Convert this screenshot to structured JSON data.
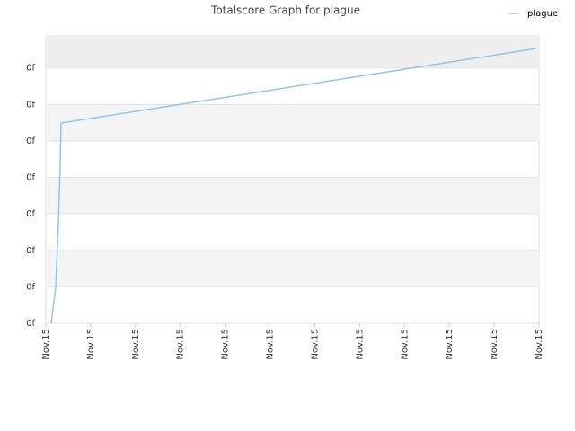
{
  "chart_data": {
    "type": "line",
    "title": "Totalscore Graph for plague",
    "x": [
      0.12,
      0.22,
      0.28,
      0.32,
      0.34,
      10.92
    ],
    "series": [
      {
        "name": "plague",
        "color": "#90c5ee",
        "values": [
          0,
          0.98,
          2.7,
          4.3,
          5.49,
          7.53
        ]
      }
    ],
    "xlim": [
      0,
      11
    ],
    "xticks": [
      {
        "value": 0,
        "label": "Nov.15"
      },
      {
        "value": 1,
        "label": "Nov.15"
      },
      {
        "value": 2,
        "label": "Nov.15"
      },
      {
        "value": 3,
        "label": "Nov.15"
      },
      {
        "value": 4,
        "label": "Nov.15"
      },
      {
        "value": 5,
        "label": "Nov.15"
      },
      {
        "value": 6,
        "label": "Nov.15"
      },
      {
        "value": 7,
        "label": "Nov.15"
      },
      {
        "value": 8,
        "label": "Nov.15"
      },
      {
        "value": 9,
        "label": "Nov.15"
      },
      {
        "value": 10,
        "label": "Nov.15"
      },
      {
        "value": 11,
        "label": "Nov.15"
      }
    ],
    "ylim": [
      0,
      7.88
    ],
    "yticks": [
      {
        "value": 0,
        "label": "0f"
      },
      {
        "value": 1,
        "label": "0f"
      },
      {
        "value": 2,
        "label": "0f"
      },
      {
        "value": 3,
        "label": "0f"
      },
      {
        "value": 4,
        "label": "0f"
      },
      {
        "value": 5,
        "label": "0f"
      },
      {
        "value": 6,
        "label": "0f"
      },
      {
        "value": 7,
        "label": "0f"
      }
    ],
    "grid": true,
    "legend": "top-right"
  }
}
